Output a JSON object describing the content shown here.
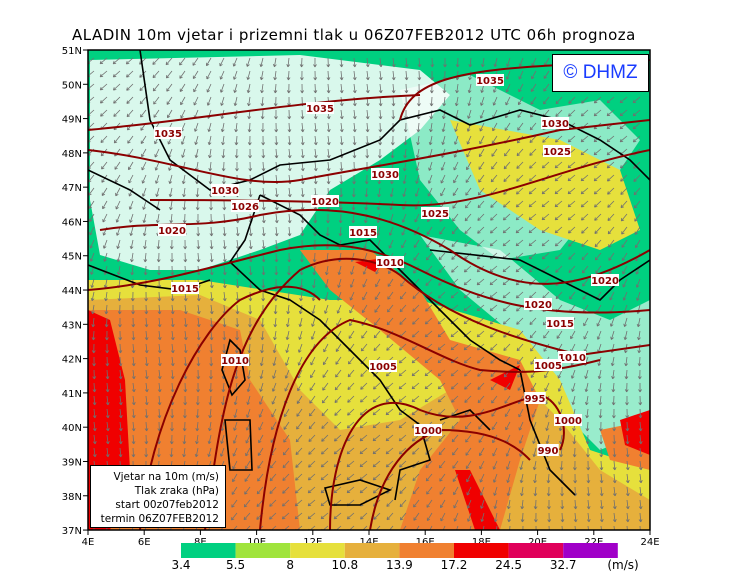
{
  "title": "ALADIN 10m vjetar i prizemni tlak u 06Z07FEB2012 UTC 06h prognoza",
  "copyright": "© DHMZ",
  "legend_box": [
    "Vjetar na 10m (m/s)",
    "Tlak zraka (hPa)",
    "start 00z07feb2012",
    "termin 06Z07FEB2012"
  ],
  "axes": {
    "lon_ticks": [
      "4E",
      "6E",
      "8E",
      "10E",
      "12E",
      "14E",
      "16E",
      "18E",
      "20E",
      "22E",
      "24E"
    ],
    "lat_ticks": [
      "51N",
      "50N",
      "49N",
      "48N",
      "47N",
      "46N",
      "45N",
      "44N",
      "43N",
      "42N",
      "41N",
      "40N",
      "39N",
      "38N",
      "37N"
    ]
  },
  "colorbar": {
    "labels": [
      "3.4",
      "5.5",
      "8",
      "10.8",
      "13.9",
      "17.2",
      "24.5",
      "32.7"
    ],
    "unit": "(m/s)",
    "colors": [
      "#00d080",
      "#a0e43c",
      "#e6e03c",
      "#e6b03c",
      "#f08030",
      "#f00000",
      "#e0005a",
      "#a000c8"
    ]
  },
  "isobar_labels": [
    "1035",
    "1035",
    "1035",
    "1030",
    "1030",
    "1030",
    "1026",
    "1025",
    "1025",
    "1020",
    "1020",
    "1020",
    "1020",
    "1015",
    "1015",
    "1015",
    "1010",
    "1010",
    "1010",
    "1005",
    "1005",
    "1000",
    "1000",
    "995",
    "990"
  ],
  "colors": {
    "isobar": "#8b0000",
    "arrows": "#707070",
    "border": "#000000"
  }
}
